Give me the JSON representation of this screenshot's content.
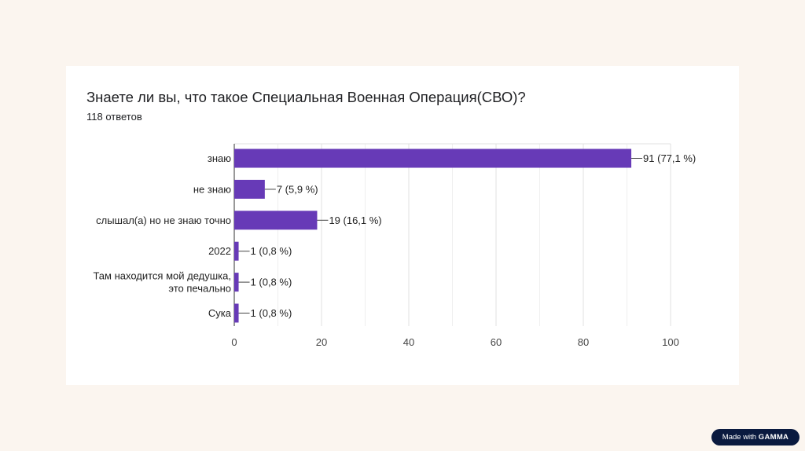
{
  "header": {
    "title": "Знаете ли вы, что такое Специальная Военная Операция(СВО)?",
    "subtitle": "118 ответов"
  },
  "badge": {
    "prefix": "Made with",
    "brand": "GAMMA"
  },
  "chart_data": {
    "type": "bar",
    "orientation": "horizontal",
    "categories": [
      [
        "знаю"
      ],
      [
        "не знаю"
      ],
      [
        "слышал(а) но не знаю точно"
      ],
      [
        "2022"
      ],
      [
        "Там находится мой дедушка,",
        "это печально"
      ],
      [
        "Сука"
      ]
    ],
    "values": [
      91,
      7,
      19,
      1,
      1,
      1
    ],
    "data_labels": [
      "91 (77,1 %)",
      "7 (5,9 %)",
      "19 (16,1 %)",
      "1 (0,8 %)",
      "1 (0,8 %)",
      "1 (0,8 %)"
    ],
    "xlim": [
      0,
      100
    ],
    "xticks": [
      "0",
      "20",
      "40",
      "60",
      "80",
      "100"
    ],
    "grid": true,
    "bar_color": "#673ab7"
  }
}
